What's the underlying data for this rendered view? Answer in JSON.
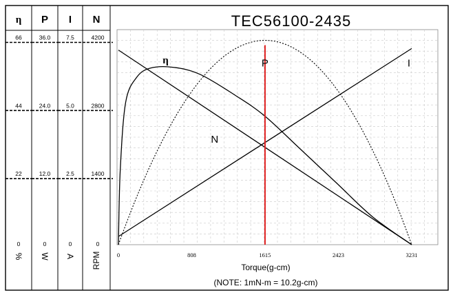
{
  "chart_data": {
    "type": "line",
    "title": "TEC56100-2435",
    "xlabel": "Torque(g-cm)",
    "note": "(NOTE: 1mN-m = 10.2g-cm)",
    "x_ticks": [
      "0",
      "808",
      "1615",
      "2423",
      "3231"
    ],
    "xlim": [
      0,
      3231
    ],
    "columns": [
      {
        "header": "η",
        "unit": "%",
        "ticks": [
          "66",
          "44",
          "22",
          "0"
        ],
        "max": 66
      },
      {
        "header": "P",
        "unit": "W",
        "ticks": [
          "36.0",
          "24.0",
          "12.0",
          "0"
        ],
        "max": 36
      },
      {
        "header": "I",
        "unit": "A",
        "ticks": [
          "7.5",
          "5.0",
          "2.5",
          "0"
        ],
        "max": 7.5
      },
      {
        "header": "N",
        "unit": "RPM",
        "ticks": [
          "4200",
          "2800",
          "1400",
          "0"
        ],
        "max": 4200
      }
    ],
    "series": [
      {
        "name": "η",
        "style": "solid",
        "x": [
          0,
          20,
          80,
          200,
          350,
          600,
          900,
          1300,
          1615,
          2000,
          2400,
          2800,
          3231
        ],
        "y": [
          0,
          24,
          46,
          54,
          57,
          57.3,
          55,
          48,
          41.5,
          31,
          20,
          9,
          0
        ]
      },
      {
        "name": "P",
        "style": "dotted",
        "x": [
          0,
          404,
          808,
          1212,
          1615,
          2019,
          2423,
          2827,
          3231
        ],
        "y": [
          0,
          15.75,
          27,
          33.75,
          36,
          33.75,
          27,
          15.75,
          0
        ]
      },
      {
        "name": "I",
        "style": "solid",
        "x": [
          0,
          3231
        ],
        "y": [
          0.3,
          7.2
        ]
      },
      {
        "name": "N",
        "style": "solid",
        "x": [
          0,
          3231
        ],
        "y": [
          4000,
          0
        ]
      }
    ],
    "marker": {
      "x": 1615,
      "color": "#e02020"
    },
    "series_label_positions": [
      {
        "name": "η",
        "x": 520,
        "y": 58.5
      },
      {
        "name": "P",
        "x": 1615,
        "y": 57.5
      },
      {
        "name": "I",
        "x": 3200,
        "y": 57.5
      },
      {
        "name": "N",
        "x": 1060,
        "y": 33
      }
    ]
  }
}
